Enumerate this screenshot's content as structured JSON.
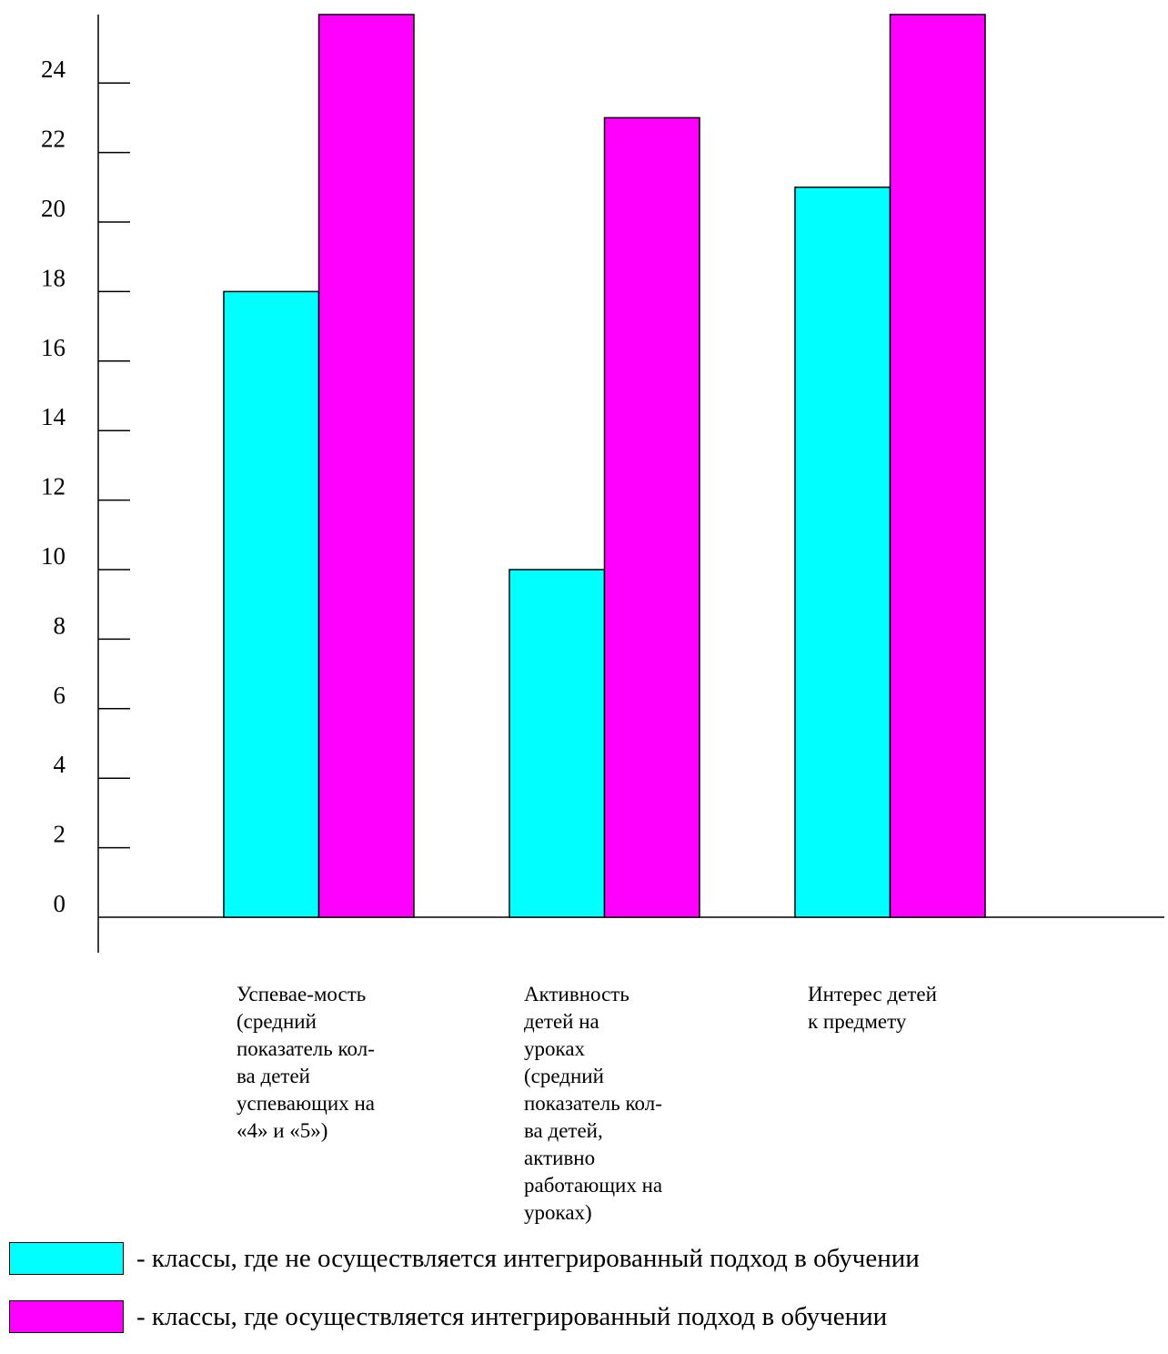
{
  "chart_data": {
    "type": "bar",
    "categories": [
      "Успевае-мость\n(средний\nпоказатель кол-\nва детей\nуспевающих на\n«4» и «5»)",
      "Активность\nдетей на\nуроках\n(средний\nпоказатель кол-\nва детей,\nактивно\nработающих на\nуроках)",
      "Интерес детей\nк предмету"
    ],
    "series": [
      {
        "name": "- классы, где не осуществляется интегрированный подход в обучении",
        "color": "#00FFFF",
        "values": [
          18,
          10,
          21
        ]
      },
      {
        "name": "- классы, где осуществляется интегрированный подход в обучении",
        "color": "#FF00FF",
        "values": [
          26,
          23,
          26
        ]
      }
    ],
    "yticks": [
      "0",
      "2",
      "4",
      "6",
      "8",
      "10",
      "12",
      "14",
      "16",
      "18",
      "20",
      "22",
      "24"
    ],
    "ylim": [
      0,
      26
    ],
    "title": "",
    "xlabel": "",
    "ylabel": "",
    "grid": false,
    "legend_position": "bottom"
  }
}
